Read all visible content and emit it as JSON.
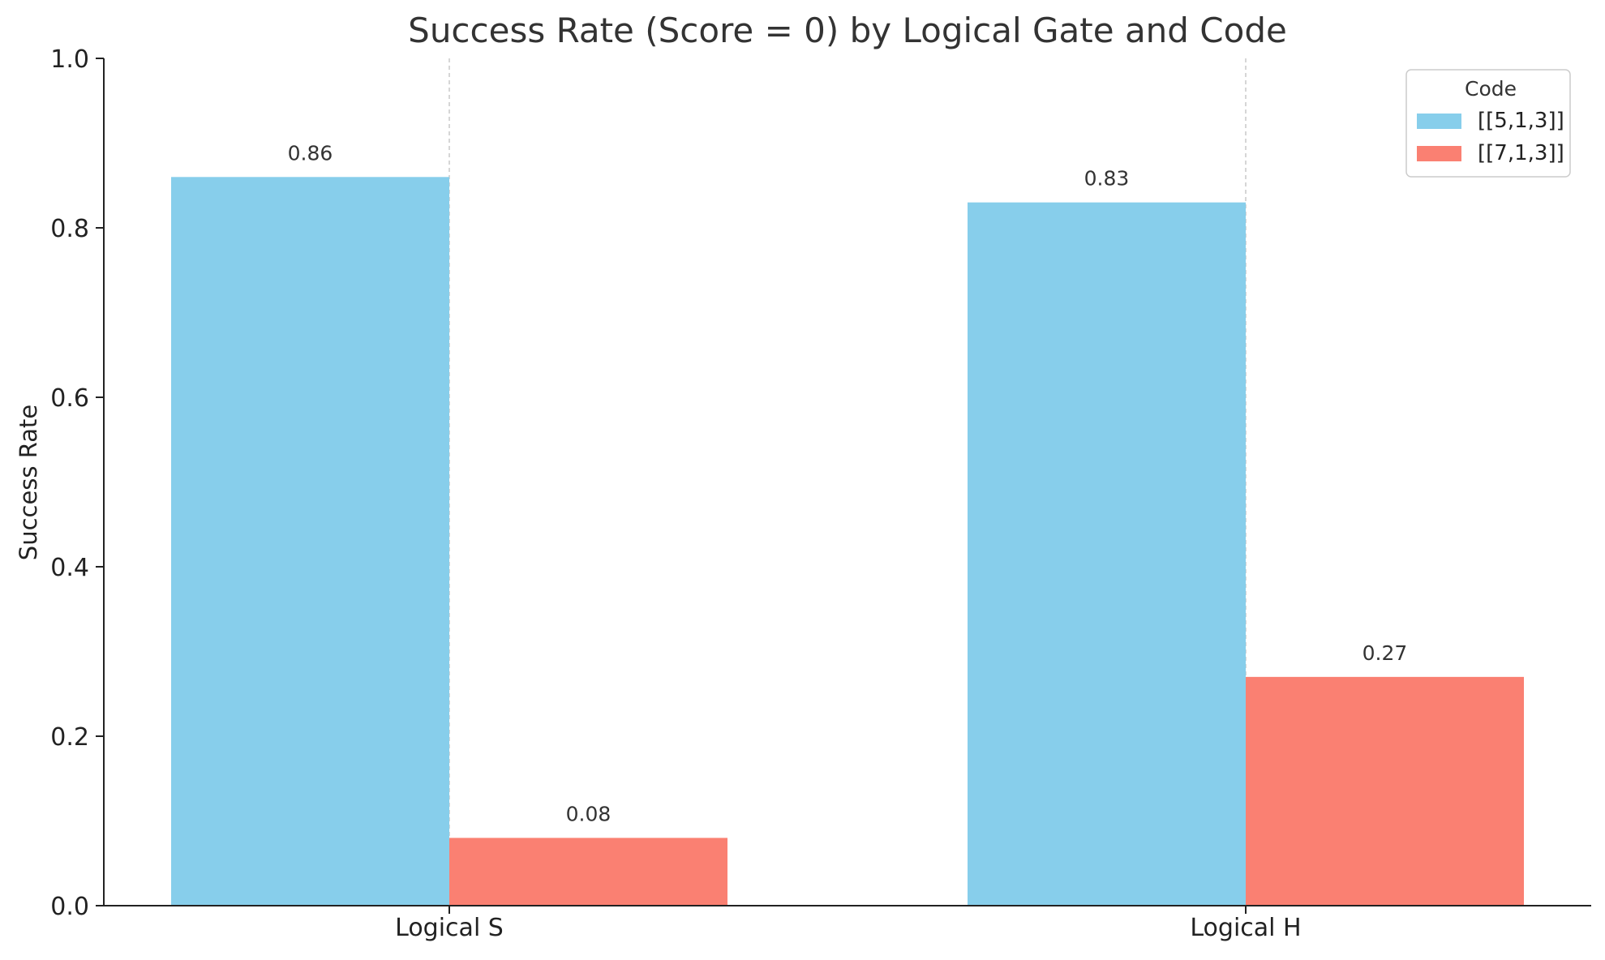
{
  "chart_data": {
    "type": "bar",
    "title": "Success Rate (Score = 0) by Logical Gate and Code",
    "xlabel": "",
    "ylabel": "Success Rate",
    "ylim": [
      0,
      1.0
    ],
    "yticks": [
      "0.0",
      "0.2",
      "0.4",
      "0.6",
      "0.8",
      "1.0"
    ],
    "categories": [
      "Logical S",
      "Logical H"
    ],
    "series": [
      {
        "name": "[[5,1,3]]",
        "color": "#87CEEB",
        "values": [
          0.86,
          0.83
        ],
        "labels": [
          "0.86",
          "0.83"
        ]
      },
      {
        "name": "[[7,1,3]]",
        "color": "#FA8072",
        "values": [
          0.08,
          0.27
        ],
        "labels": [
          "0.08",
          "0.27"
        ]
      }
    ],
    "legend": {
      "title": "Code",
      "placement": "top-right"
    },
    "grid": "x-axis dashed"
  }
}
